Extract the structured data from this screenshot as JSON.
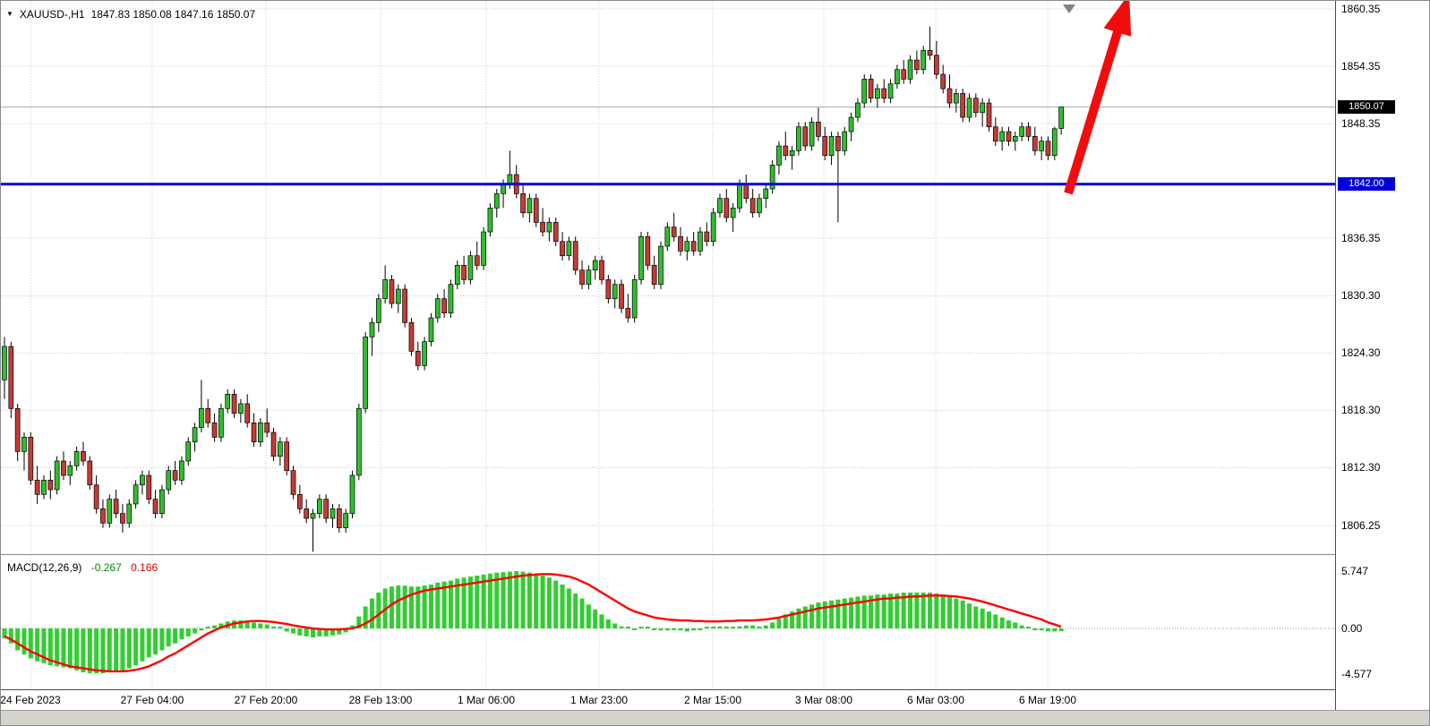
{
  "header": {
    "symbol_period": "XAUUSD-,H1",
    "ohlc": "1847.83 1850.08 1847.16 1850.07"
  },
  "icons": {
    "dropdown": "▼"
  },
  "colors": {
    "bull": "#2FBE2F",
    "bear": "#C63B35",
    "wick": "#000000",
    "grid": "#CBCBCB",
    "current_price_line": "#A8A8A8",
    "level_line": "#0000D9",
    "arrow": "#F20C0C",
    "histogram": "#32CD32",
    "signal": "#FF0000",
    "current_badge_bg": "#000000",
    "level_badge_bg": "#0000D9",
    "shift_marker": "#808080"
  },
  "price_axis": {
    "labels": [
      "1860.35",
      "1854.35",
      "1848.35",
      "1836.35",
      "1830.30",
      "1824.30",
      "1818.30",
      "1812.30",
      "1806.25"
    ],
    "current_price": "1850.07",
    "level_price": "1842.00"
  },
  "time_axis": {
    "labels": [
      "24 Feb 2023",
      "27 Feb 04:00",
      "27 Feb 20:00",
      "28 Feb 13:00",
      "1 Mar 06:00",
      "1 Mar 23:00",
      "2 Mar 15:00",
      "3 Mar 08:00",
      "6 Mar 03:00",
      "6 Mar 19:00"
    ]
  },
  "macd": {
    "label": "MACD(12,26,9)",
    "value_main": "-0.267",
    "value_signal": "0.166",
    "axis_labels": [
      "5.747",
      "0.00",
      "-4.577"
    ]
  },
  "chart_data": {
    "type": "candlestick",
    "symbol": "XAUUSD-",
    "timeframe": "H1",
    "last_ohlc": {
      "open": 1847.83,
      "high": 1850.08,
      "low": 1847.16,
      "close": 1850.07
    },
    "support_level": 1842.0,
    "y_ticks": [
      1860.35,
      1854.35,
      1848.35,
      1836.35,
      1830.3,
      1824.3,
      1818.3,
      1812.3,
      1806.25
    ],
    "x_ticks": [
      "24 Feb 2023",
      "27 Feb 04:00",
      "27 Feb 20:00",
      "28 Feb 13:00",
      "1 Mar 06:00",
      "1 Mar 23:00",
      "2 Mar 15:00",
      "3 Mar 08:00",
      "6 Mar 03:00",
      "6 Mar 19:00"
    ],
    "annotations": [
      {
        "type": "horizontal-line",
        "price": 1842.0,
        "color": "#0000D9"
      },
      {
        "type": "arrow-up",
        "color": "#F20C0C"
      }
    ],
    "candles_ohlc": [
      [
        1821.5,
        1826,
        1819.5,
        1825
      ],
      [
        1825,
        1825.5,
        1817.5,
        1818.5
      ],
      [
        1818.5,
        1819,
        1813,
        1814
      ],
      [
        1814,
        1816,
        1812,
        1815.5
      ],
      [
        1815.5,
        1816,
        1810.5,
        1811
      ],
      [
        1811,
        1812.5,
        1808.5,
        1809.5
      ],
      [
        1809.5,
        1811.5,
        1809,
        1811
      ],
      [
        1811,
        1812,
        1809,
        1810
      ],
      [
        1810,
        1813.5,
        1809.5,
        1813
      ],
      [
        1813,
        1814,
        1811,
        1811.5
      ],
      [
        1811.5,
        1813,
        1810.5,
        1812.5
      ],
      [
        1812.5,
        1814.5,
        1812,
        1814
      ],
      [
        1814,
        1815,
        1812.5,
        1813
      ],
      [
        1813,
        1813.5,
        1810,
        1810.5
      ],
      [
        1810.5,
        1811.5,
        1807.5,
        1808
      ],
      [
        1808,
        1809,
        1806,
        1806.5
      ],
      [
        1806.5,
        1809.5,
        1806,
        1809
      ],
      [
        1809,
        1810,
        1807,
        1807.5
      ],
      [
        1807.5,
        1808.5,
        1805.5,
        1806.5
      ],
      [
        1806.5,
        1809,
        1806,
        1808.5
      ],
      [
        1808.5,
        1811,
        1808,
        1810.5
      ],
      [
        1810.5,
        1812,
        1809.5,
        1811.5
      ],
      [
        1811.5,
        1812,
        1808.5,
        1809
      ],
      [
        1809,
        1810,
        1807,
        1807.5
      ],
      [
        1807.5,
        1810.5,
        1807,
        1810
      ],
      [
        1810,
        1812.5,
        1809.5,
        1812
      ],
      [
        1812,
        1813,
        1810.5,
        1811
      ],
      [
        1811,
        1813.5,
        1810.5,
        1813
      ],
      [
        1813,
        1815.5,
        1812.5,
        1815
      ],
      [
        1815,
        1817,
        1814,
        1816.5
      ],
      [
        1816.5,
        1821.5,
        1816,
        1818.5
      ],
      [
        1818.5,
        1819.5,
        1816.5,
        1817
      ],
      [
        1817,
        1818,
        1815,
        1815.5
      ],
      [
        1815.5,
        1819,
        1815,
        1818.5
      ],
      [
        1818.5,
        1820.5,
        1818,
        1820
      ],
      [
        1820,
        1820.5,
        1817.5,
        1818
      ],
      [
        1818,
        1819.5,
        1817,
        1819
      ],
      [
        1819,
        1820,
        1816.5,
        1817
      ],
      [
        1817,
        1818,
        1814.5,
        1815
      ],
      [
        1815,
        1817.5,
        1814.5,
        1817
      ],
      [
        1817,
        1818.5,
        1815.5,
        1816
      ],
      [
        1816,
        1816.5,
        1813,
        1813.5
      ],
      [
        1813.5,
        1815.5,
        1812.5,
        1815
      ],
      [
        1815,
        1815.5,
        1811.5,
        1812
      ],
      [
        1812,
        1812.5,
        1809,
        1809.5
      ],
      [
        1809.5,
        1810.5,
        1807.5,
        1808
      ],
      [
        1808,
        1809,
        1806.5,
        1807
      ],
      [
        1807,
        1808,
        1803.5,
        1807.5
      ],
      [
        1807.5,
        1809.5,
        1807,
        1809
      ],
      [
        1809,
        1809.5,
        1806.5,
        1807
      ],
      [
        1807,
        1808.5,
        1806,
        1808
      ],
      [
        1808,
        1808.5,
        1805.5,
        1806
      ],
      [
        1806,
        1808,
        1805.5,
        1807.5
      ],
      [
        1807.5,
        1812,
        1807,
        1811.5
      ],
      [
        1811.5,
        1819,
        1811,
        1818.5
      ],
      [
        1818.5,
        1826.5,
        1818,
        1826
      ],
      [
        1826,
        1828,
        1824,
        1827.5
      ],
      [
        1827.5,
        1830.5,
        1826.5,
        1830
      ],
      [
        1830,
        1833.5,
        1829.5,
        1832
      ],
      [
        1832,
        1832.5,
        1829,
        1829.5
      ],
      [
        1829.5,
        1831.5,
        1828.5,
        1831
      ],
      [
        1831,
        1831.5,
        1827,
        1827.5
      ],
      [
        1827.5,
        1828,
        1824,
        1824.5
      ],
      [
        1824.5,
        1825.5,
        1822.5,
        1823
      ],
      [
        1823,
        1826,
        1822.5,
        1825.5
      ],
      [
        1825.5,
        1828.5,
        1825,
        1828
      ],
      [
        1828,
        1830.5,
        1827.5,
        1830
      ],
      [
        1830,
        1831,
        1828,
        1828.5
      ],
      [
        1828.5,
        1832,
        1828,
        1831.5
      ],
      [
        1831.5,
        1834,
        1831,
        1833.5
      ],
      [
        1833.5,
        1834.5,
        1831.5,
        1832
      ],
      [
        1832,
        1835,
        1831.5,
        1834.5
      ],
      [
        1834.5,
        1836,
        1833,
        1833.5
      ],
      [
        1833.5,
        1837.5,
        1833,
        1837
      ],
      [
        1837,
        1840,
        1836.5,
        1839.5
      ],
      [
        1839.5,
        1841.5,
        1838.5,
        1841
      ],
      [
        1841,
        1842.5,
        1839.5,
        1842
      ],
      [
        1842,
        1845.5,
        1841.5,
        1843
      ],
      [
        1843,
        1844,
        1840.5,
        1841
      ],
      [
        1841,
        1842,
        1838.5,
        1839
      ],
      [
        1839,
        1841,
        1838,
        1840.5
      ],
      [
        1840.5,
        1841,
        1837.5,
        1838
      ],
      [
        1838,
        1839.5,
        1836.5,
        1837
      ],
      [
        1837,
        1838.5,
        1836,
        1838
      ],
      [
        1838,
        1838.5,
        1835.5,
        1836
      ],
      [
        1836,
        1837,
        1834,
        1834.5
      ],
      [
        1834.5,
        1836.5,
        1834,
        1836
      ],
      [
        1836,
        1836.5,
        1832.5,
        1833
      ],
      [
        1833,
        1834,
        1831,
        1831.5
      ],
      [
        1831.5,
        1833.5,
        1831,
        1833
      ],
      [
        1833,
        1834.5,
        1832,
        1834
      ],
      [
        1834,
        1834.5,
        1831.5,
        1832
      ],
      [
        1832,
        1832.5,
        1829.5,
        1830
      ],
      [
        1830,
        1832,
        1829,
        1831.5
      ],
      [
        1831.5,
        1832,
        1828.5,
        1829
      ],
      [
        1829,
        1830.5,
        1827.5,
        1828
      ],
      [
        1828,
        1832.5,
        1827.5,
        1832
      ],
      [
        1832,
        1837,
        1831.5,
        1836.5
      ],
      [
        1836.5,
        1837,
        1833,
        1833.5
      ],
      [
        1833.5,
        1834.5,
        1831,
        1831.5
      ],
      [
        1831.5,
        1836,
        1831,
        1835.5
      ],
      [
        1835.5,
        1838,
        1835,
        1837.5
      ],
      [
        1837.5,
        1839,
        1836,
        1836.5
      ],
      [
        1836.5,
        1837.5,
        1834.5,
        1835
      ],
      [
        1835,
        1836.5,
        1834,
        1836
      ],
      [
        1836,
        1837,
        1834.5,
        1835
      ],
      [
        1835,
        1837.5,
        1834.5,
        1837
      ],
      [
        1837,
        1838,
        1835.5,
        1836
      ],
      [
        1836,
        1839.5,
        1835.5,
        1839
      ],
      [
        1839,
        1841,
        1838.5,
        1840.5
      ],
      [
        1840.5,
        1841.5,
        1838,
        1838.5
      ],
      [
        1838.5,
        1840,
        1837,
        1839.5
      ],
      [
        1839.5,
        1842.5,
        1839,
        1842
      ],
      [
        1842,
        1843,
        1840,
        1840.5
      ],
      [
        1840.5,
        1841.5,
        1838.5,
        1839
      ],
      [
        1839,
        1841,
        1838.5,
        1840.5
      ],
      [
        1840.5,
        1842,
        1839.5,
        1841.5
      ],
      [
        1841.5,
        1844.5,
        1841,
        1844
      ],
      [
        1844,
        1846.5,
        1843,
        1846
      ],
      [
        1846,
        1847.5,
        1844.5,
        1845
      ],
      [
        1845,
        1846,
        1843.5,
        1845.5
      ],
      [
        1845.5,
        1848.5,
        1845,
        1848
      ],
      [
        1848,
        1848.5,
        1845.5,
        1846
      ],
      [
        1846,
        1849,
        1845.5,
        1848.5
      ],
      [
        1848.5,
        1850,
        1846.5,
        1847
      ],
      [
        1847,
        1848,
        1844.5,
        1845
      ],
      [
        1845,
        1847.5,
        1844,
        1847
      ],
      [
        1847,
        1847.5,
        1838,
        1845.5
      ],
      [
        1845.5,
        1848,
        1845,
        1847.5
      ],
      [
        1847.5,
        1849.5,
        1846.5,
        1849
      ],
      [
        1849,
        1851,
        1848.5,
        1850.5
      ],
      [
        1850.5,
        1853.5,
        1850,
        1853
      ],
      [
        1853,
        1853.5,
        1850.5,
        1851
      ],
      [
        1851,
        1852.5,
        1850,
        1852
      ],
      [
        1852,
        1853,
        1850.5,
        1851
      ],
      [
        1851,
        1853,
        1850.5,
        1852.5
      ],
      [
        1852.5,
        1854.5,
        1852,
        1854
      ],
      [
        1854,
        1855,
        1852.5,
        1853
      ],
      [
        1853,
        1855.5,
        1852.5,
        1855
      ],
      [
        1855,
        1856,
        1853.5,
        1854
      ],
      [
        1854,
        1856.5,
        1853.5,
        1856
      ],
      [
        1856,
        1858.5,
        1855,
        1855.5
      ],
      [
        1855.5,
        1857,
        1853,
        1853.5
      ],
      [
        1853.5,
        1854.5,
        1851.5,
        1852
      ],
      [
        1852,
        1853.5,
        1850,
        1850.5
      ],
      [
        1850.5,
        1852,
        1849.5,
        1851.5
      ],
      [
        1851.5,
        1852,
        1848.5,
        1849
      ],
      [
        1849,
        1851.5,
        1848.5,
        1851
      ],
      [
        1851,
        1851.5,
        1849,
        1849.5
      ],
      [
        1849.5,
        1851,
        1848,
        1850.5
      ],
      [
        1850.5,
        1851,
        1847.5,
        1848
      ],
      [
        1848,
        1849,
        1846,
        1846.5
      ],
      [
        1846.5,
        1848,
        1845.5,
        1847.5
      ],
      [
        1847.5,
        1848,
        1846,
        1846.5
      ],
      [
        1846.5,
        1847.5,
        1845.5,
        1847
      ],
      [
        1847,
        1848.5,
        1846.5,
        1848
      ],
      [
        1848,
        1848.5,
        1846.5,
        1847
      ],
      [
        1847,
        1848,
        1845,
        1845.5
      ],
      [
        1845.5,
        1847,
        1844.5,
        1846.5
      ],
      [
        1846.5,
        1847,
        1844.5,
        1845
      ],
      [
        1845,
        1848,
        1844.5,
        1847.8
      ],
      [
        1847.83,
        1850.08,
        1847.16,
        1850.07
      ]
    ],
    "indicator": {
      "name": "MACD(12,26,9)",
      "axis_ticks": [
        5.747,
        0.0,
        -4.577
      ],
      "current_histogram": -0.267,
      "current_signal": 0.166,
      "histogram": [
        -1.0,
        -1.5,
        -2.2,
        -2.6,
        -3.0,
        -3.3,
        -3.5,
        -3.7,
        -3.8,
        -3.9,
        -4.0,
        -4.2,
        -4.4,
        -4.5,
        -4.5,
        -4.5,
        -4.4,
        -4.3,
        -4.2,
        -4.0,
        -3.7,
        -3.3,
        -2.9,
        -2.6,
        -2.2,
        -1.8,
        -1.5,
        -1.1,
        -0.8,
        -0.5,
        -0.2,
        0.1,
        0.3,
        0.5,
        0.7,
        0.8,
        0.8,
        0.7,
        0.6,
        0.5,
        0.4,
        0.2,
        0.0,
        -0.3,
        -0.5,
        -0.7,
        -0.8,
        -0.9,
        -0.8,
        -0.8,
        -0.7,
        -0.6,
        -0.4,
        0.3,
        1.2,
        2.2,
        3.0,
        3.6,
        4.0,
        4.2,
        4.3,
        4.3,
        4.2,
        4.2,
        4.3,
        4.4,
        4.6,
        4.7,
        4.8,
        5.0,
        5.1,
        5.2,
        5.3,
        5.4,
        5.5,
        5.6,
        5.65,
        5.7,
        5.75,
        5.7,
        5.6,
        5.5,
        5.3,
        5.1,
        4.8,
        4.4,
        4.0,
        3.5,
        3.0,
        2.4,
        1.9,
        1.4,
        0.9,
        0.5,
        0.2,
        0.0,
        -0.1,
        0.1,
        0.1,
        -0.1,
        -0.2,
        -0.2,
        -0.1,
        -0.2,
        -0.3,
        -0.2,
        -0.1,
        0.0,
        0.1,
        0.2,
        0.2,
        0.1,
        0.2,
        0.3,
        0.3,
        0.2,
        0.3,
        0.6,
        1.0,
        1.4,
        1.7,
        2.0,
        2.2,
        2.4,
        2.6,
        2.7,
        2.8,
        2.9,
        3.0,
        3.1,
        3.2,
        3.3,
        3.3,
        3.4,
        3.4,
        3.5,
        3.5,
        3.6,
        3.6,
        3.6,
        3.6,
        3.6,
        3.5,
        3.4,
        3.2,
        3.0,
        2.8,
        2.5,
        2.2,
        2.0,
        1.7,
        1.4,
        1.1,
        0.8,
        0.6,
        0.3,
        0.1,
        -0.1,
        -0.2,
        -0.3,
        -0.3,
        -0.267
      ],
      "signal": [
        -0.8,
        -1.1,
        -1.5,
        -1.9,
        -2.3,
        -2.6,
        -2.9,
        -3.2,
        -3.4,
        -3.6,
        -3.8,
        -3.9,
        -4.0,
        -4.1,
        -4.2,
        -4.25,
        -4.3,
        -4.3,
        -4.3,
        -4.25,
        -4.15,
        -4.0,
        -3.8,
        -3.5,
        -3.2,
        -2.8,
        -2.5,
        -2.1,
        -1.7,
        -1.3,
        -0.9,
        -0.5,
        -0.2,
        0.1,
        0.3,
        0.5,
        0.6,
        0.7,
        0.75,
        0.75,
        0.7,
        0.65,
        0.55,
        0.45,
        0.3,
        0.2,
        0.1,
        0.0,
        -0.05,
        -0.1,
        -0.1,
        -0.1,
        -0.05,
        0.0,
        0.2,
        0.5,
        0.9,
        1.4,
        1.9,
        2.4,
        2.8,
        3.1,
        3.4,
        3.6,
        3.8,
        3.9,
        4.0,
        4.1,
        4.2,
        4.3,
        4.4,
        4.5,
        4.6,
        4.7,
        4.8,
        4.9,
        5.0,
        5.1,
        5.2,
        5.3,
        5.35,
        5.4,
        5.45,
        5.45,
        5.4,
        5.3,
        5.2,
        5.0,
        4.7,
        4.4,
        4.0,
        3.6,
        3.2,
        2.8,
        2.4,
        2.0,
        1.7,
        1.5,
        1.3,
        1.1,
        1.0,
        0.9,
        0.85,
        0.8,
        0.8,
        0.75,
        0.75,
        0.7,
        0.7,
        0.7,
        0.75,
        0.75,
        0.8,
        0.8,
        0.8,
        0.85,
        0.9,
        1.0,
        1.1,
        1.25,
        1.4,
        1.55,
        1.7,
        1.85,
        2.0,
        2.1,
        2.2,
        2.3,
        2.4,
        2.5,
        2.6,
        2.7,
        2.8,
        2.9,
        3.0,
        3.0,
        3.1,
        3.1,
        3.2,
        3.2,
        3.25,
        3.3,
        3.3,
        3.3,
        3.25,
        3.2,
        3.1,
        3.0,
        2.85,
        2.7,
        2.5,
        2.3,
        2.1,
        1.9,
        1.7,
        1.5,
        1.3,
        1.1,
        0.9,
        0.6,
        0.4,
        0.166
      ]
    }
  }
}
